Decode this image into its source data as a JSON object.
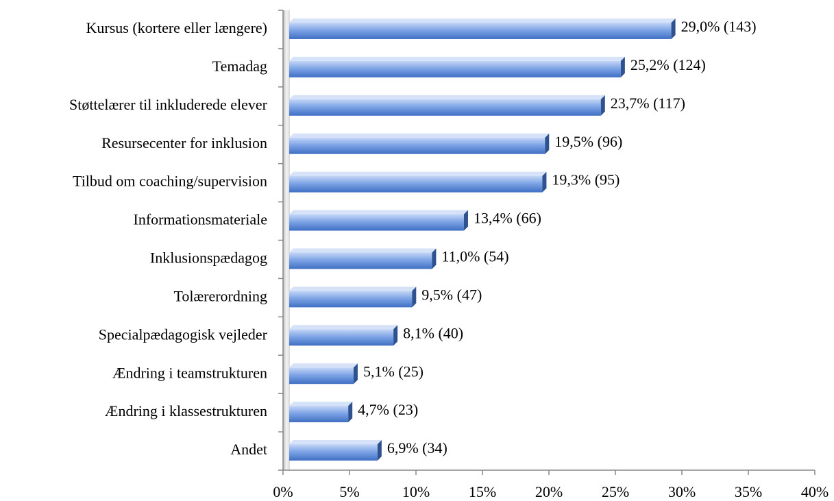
{
  "chart_data": {
    "type": "hbar",
    "categories": [
      "Kursus (kortere eller længere)",
      "Temadag",
      "Støttelærer til inkluderede elever",
      "Resursecenter for inklusion",
      "Tilbud om coaching/supervision",
      "Informationsmateriale",
      "Inklusionspædagog",
      "Tolærerordning",
      "Specialpædagogisk vejleder",
      "Ændring i teamstrukturen",
      "Ændring i klassestrukturen",
      "Andet"
    ],
    "values": [
      29.0,
      25.2,
      23.7,
      19.5,
      19.3,
      13.4,
      11.0,
      9.5,
      8.1,
      5.1,
      4.7,
      6.9
    ],
    "value_labels": [
      "29,0% (143)",
      "25,2% (124)",
      "23,7% (117)",
      "19,5% (96)",
      "19,3% (95)",
      "13,4% (66)",
      "11,0% (54)",
      "9,5% (47)",
      "8,1% (40)",
      "5,1% (25)",
      "4,7% (23)",
      "6,9% (34)"
    ],
    "color": "#4f81bd",
    "xlim": [
      0,
      40
    ],
    "xticks": [
      {
        "value": 0,
        "label": "0%"
      },
      {
        "value": 5,
        "label": "5%"
      },
      {
        "value": 10,
        "label": "10%"
      },
      {
        "value": 15,
        "label": "15%"
      },
      {
        "value": 20,
        "label": "20%"
      },
      {
        "value": 25,
        "label": "25%"
      },
      {
        "value": 30,
        "label": "30%"
      },
      {
        "value": 35,
        "label": "35%"
      },
      {
        "value": 40,
        "label": "40%"
      }
    ],
    "grid": false
  }
}
